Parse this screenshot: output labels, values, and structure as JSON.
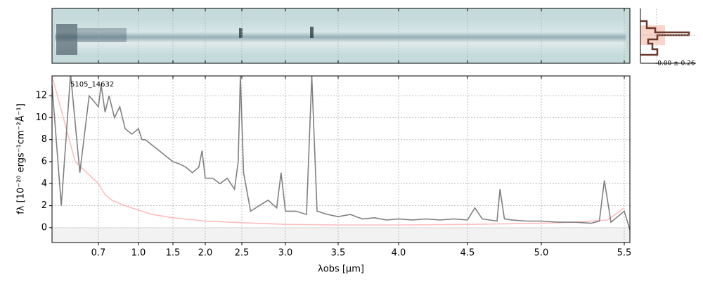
{
  "chart_data": {
    "type": "line",
    "annotation": "5105_14632",
    "xlabel": "λobs [μm]",
    "ylabel": "fλ [10⁻²⁰ ergs⁻¹cm⁻²Å⁻¹]",
    "profile_label": "-0.00 ± 0.26",
    "xscale": "nonlinear",
    "xlim": [
      0.6,
      5.52
    ],
    "xticks": [
      0.7,
      {
        "value": 1.0,
        "label": "1.0"
      },
      1.5,
      {
        "value": 2.0,
        "label": "2.0"
      },
      2.5,
      {
        "value": 3.0,
        "label": "3.0"
      },
      3.5,
      {
        "value": 4.0,
        "label": "4.0"
      },
      4.5,
      {
        "value": 5.0,
        "label": "5.0"
      },
      5.5
    ],
    "ylim": [
      -1.35,
      13.8
    ],
    "yticks": [
      0,
      2,
      4,
      6,
      8,
      10,
      12
    ],
    "grid": true,
    "series": [
      {
        "color": "#ffbdbd",
        "x": [
          0.6,
          0.65,
          0.7,
          0.75,
          0.8,
          0.9,
          1.0,
          1.2,
          1.5,
          2.0,
          2.5,
          3.0,
          3.5,
          4.0,
          4.5,
          5.0,
          5.2,
          5.4,
          5.5
        ],
        "values": [
          13.8,
          6,
          4,
          3,
          2.5,
          2,
          1.6,
          1.2,
          0.9,
          0.6,
          0.45,
          0.3,
          0.25,
          0.25,
          0.3,
          0.4,
          0.5,
          0.7,
          1.8
        ]
      },
      {
        "color": "#808080",
        "x": [
          0.6,
          0.62,
          0.64,
          0.66,
          0.68,
          0.7,
          0.72,
          0.75,
          0.78,
          0.82,
          0.86,
          0.9,
          0.95,
          1.0,
          1.05,
          1.1,
          1.2,
          1.3,
          1.4,
          1.5,
          1.6,
          1.7,
          1.8,
          1.9,
          1.95,
          2.0,
          2.1,
          2.2,
          2.3,
          2.4,
          2.45,
          2.48,
          2.52,
          2.6,
          2.7,
          2.8,
          2.9,
          2.95,
          3.0,
          3.1,
          3.2,
          3.25,
          3.3,
          3.4,
          3.5,
          3.6,
          3.7,
          3.8,
          3.9,
          4.0,
          4.1,
          4.2,
          4.3,
          4.4,
          4.5,
          4.55,
          4.6,
          4.7,
          4.72,
          4.75,
          4.8,
          4.9,
          5.0,
          5.1,
          5.2,
          5.3,
          5.35,
          5.38,
          5.42,
          5.5,
          5.52
        ],
        "values": [
          13,
          2,
          14,
          5,
          12,
          11,
          13,
          10.5,
          12,
          10,
          11,
          9,
          8.5,
          9,
          8,
          8,
          7.5,
          7,
          6.5,
          6,
          5.8,
          5.5,
          5,
          5.5,
          7,
          4.5,
          4.5,
          4,
          4.5,
          3.5,
          6,
          13.8,
          5,
          1.5,
          2,
          2.5,
          1.8,
          5,
          1.5,
          1.5,
          1.2,
          13.8,
          1.5,
          1.2,
          1.0,
          1.2,
          0.8,
          0.9,
          0.7,
          0.8,
          0.7,
          0.8,
          0.7,
          0.8,
          0.7,
          1.8,
          0.8,
          0.6,
          3.5,
          0.8,
          0.7,
          0.6,
          0.6,
          0.5,
          0.5,
          0.4,
          0.6,
          4.3,
          0.5,
          1.5,
          -0.2
        ]
      }
    ]
  }
}
